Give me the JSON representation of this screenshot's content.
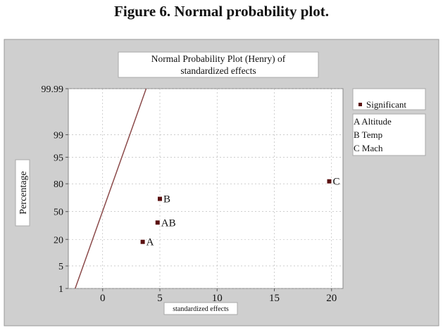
{
  "caption": "Figure 6. Normal probability plot.",
  "chart_data": {
    "type": "scatter",
    "title_lines": [
      "Normal Probability Plot (Henry) of",
      "standardized effects"
    ],
    "xlabel": "standardized effects",
    "ylabel": "Percentage",
    "xlim": [
      -3,
      21
    ],
    "x_ticks": [
      0,
      5,
      10,
      15,
      20
    ],
    "y_ticks": [
      1,
      5,
      20,
      50,
      80,
      95,
      99,
      99.99
    ],
    "y_scale": "normal-probability",
    "grid": true,
    "legend": {
      "position": "right",
      "significant_label": "Significant",
      "factors": [
        "A Altitude",
        "B Temp",
        "C Mach"
      ]
    },
    "points": [
      {
        "label": "A",
        "x": 3.5,
        "y": 18
      },
      {
        "label": "AB",
        "x": 4.8,
        "y": 37
      },
      {
        "label": "B",
        "x": 5.0,
        "y": 65
      },
      {
        "label": "C",
        "x": 19.8,
        "y": 82
      }
    ],
    "reference_line": {
      "x": [
        -2.4,
        3.8
      ],
      "y": [
        1,
        99.99
      ]
    },
    "colors": {
      "background": "#cfcfcf",
      "plot": "#ffffff",
      "line": "#8b4a4a",
      "marker": "#5a1010",
      "grid": "#b0b0b0"
    }
  }
}
